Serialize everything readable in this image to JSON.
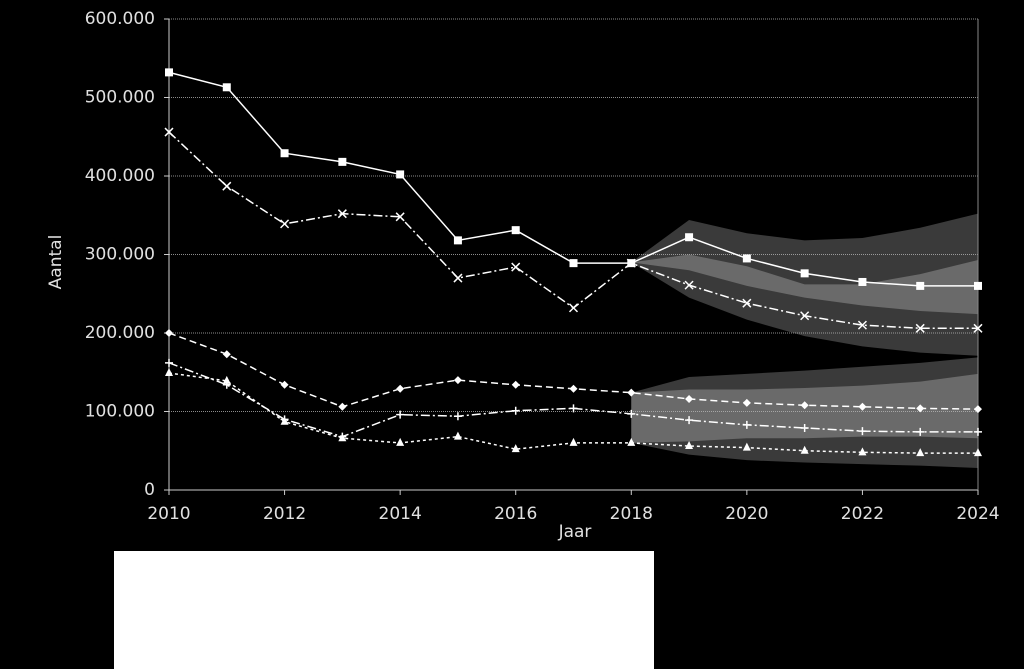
{
  "chart_data": {
    "type": "line",
    "x_label": "Jaar",
    "y_label": "Aantal",
    "x": [
      2010,
      2011,
      2012,
      2013,
      2014,
      2015,
      2016,
      2017,
      2018,
      2019,
      2020,
      2021,
      2022,
      2023,
      2024
    ],
    "xlim": [
      2010,
      2024
    ],
    "xticks": [
      2010,
      2012,
      2014,
      2016,
      2018,
      2020,
      2022,
      2024
    ],
    "ylim": [
      0,
      600000
    ],
    "yticks": [
      0,
      {
        "value": 100000,
        "label": "100.000"
      },
      {
        "value": 200000,
        "label": "200.000"
      },
      {
        "value": 300000,
        "label": "300.000"
      },
      {
        "value": 400000,
        "label": "400.000"
      },
      {
        "value": 500000,
        "label": "500.000"
      },
      {
        "value": 600000,
        "label": "600.000"
      }
    ],
    "grid": true,
    "bands": [
      {
        "color": "#3a3a3a",
        "x": [
          2018,
          2019,
          2020,
          2021,
          2022,
          2023,
          2024
        ],
        "upper": [
          290000,
          344000,
          327000,
          318000,
          321000,
          334000,
          352000
        ],
        "lower": [
          290000,
          245000,
          217000,
          196000,
          183000,
          175000,
          171000
        ]
      },
      {
        "color": "#3a3a3a",
        "x": [
          2018,
          2019,
          2020,
          2021,
          2022,
          2023,
          2024
        ],
        "upper": [
          124000,
          144000,
          148000,
          152000,
          157000,
          162000,
          169000
        ],
        "lower": [
          60000,
          45000,
          38000,
          35000,
          33000,
          31000,
          28000
        ]
      },
      {
        "color": "#6a6a6a",
        "x": [
          2018,
          2019,
          2020,
          2021,
          2022,
          2023,
          2024
        ],
        "upper": [
          290000,
          300000,
          285000,
          262000,
          262000,
          275000,
          293000
        ],
        "lower": [
          290000,
          280000,
          260000,
          245000,
          235000,
          228000,
          224000
        ]
      },
      {
        "color": "#6a6a6a",
        "x": [
          2018,
          2019,
          2020,
          2021,
          2022,
          2023,
          2024
        ],
        "upper": [
          124000,
          128000,
          128000,
          130000,
          133000,
          138000,
          148000
        ],
        "lower": [
          60000,
          62000,
          66000,
          66000,
          68000,
          68000,
          66000
        ]
      }
    ],
    "series": [
      {
        "color": "#ffffff",
        "marker": "square",
        "dash": "solid",
        "values": [
          532000,
          513000,
          429000,
          418000,
          402000,
          318000,
          331000,
          289000,
          289000,
          322000,
          295000,
          276000,
          265000,
          260000,
          260000
        ]
      },
      {
        "color": "#ffffff",
        "marker": "x",
        "dash": "dashdot",
        "values": [
          456000,
          387000,
          339000,
          352000,
          348000,
          270000,
          284000,
          232000,
          289000,
          261000,
          238000,
          222000,
          210000,
          206000,
          206000
        ]
      },
      {
        "color": "#ffffff",
        "marker": "diamond",
        "dash": "dashed",
        "values": [
          200000,
          173000,
          134000,
          106000,
          129000,
          140000,
          134000,
          129000,
          124000,
          116000,
          111000,
          108000,
          106000,
          104000,
          103000
        ]
      },
      {
        "color": "#ffffff",
        "marker": "plus",
        "dash": "dashdot",
        "values": [
          162000,
          134000,
          90000,
          68000,
          96000,
          94000,
          101000,
          104000,
          97000,
          89000,
          83000,
          79000,
          75000,
          74000,
          74000
        ]
      },
      {
        "color": "#ffffff",
        "marker": "triangle",
        "dash": "dotted",
        "values": [
          149000,
          139000,
          87000,
          66000,
          60000,
          68000,
          52000,
          60000,
          60000,
          56000,
          54000,
          50000,
          48000,
          47000,
          47000
        ]
      }
    ]
  }
}
